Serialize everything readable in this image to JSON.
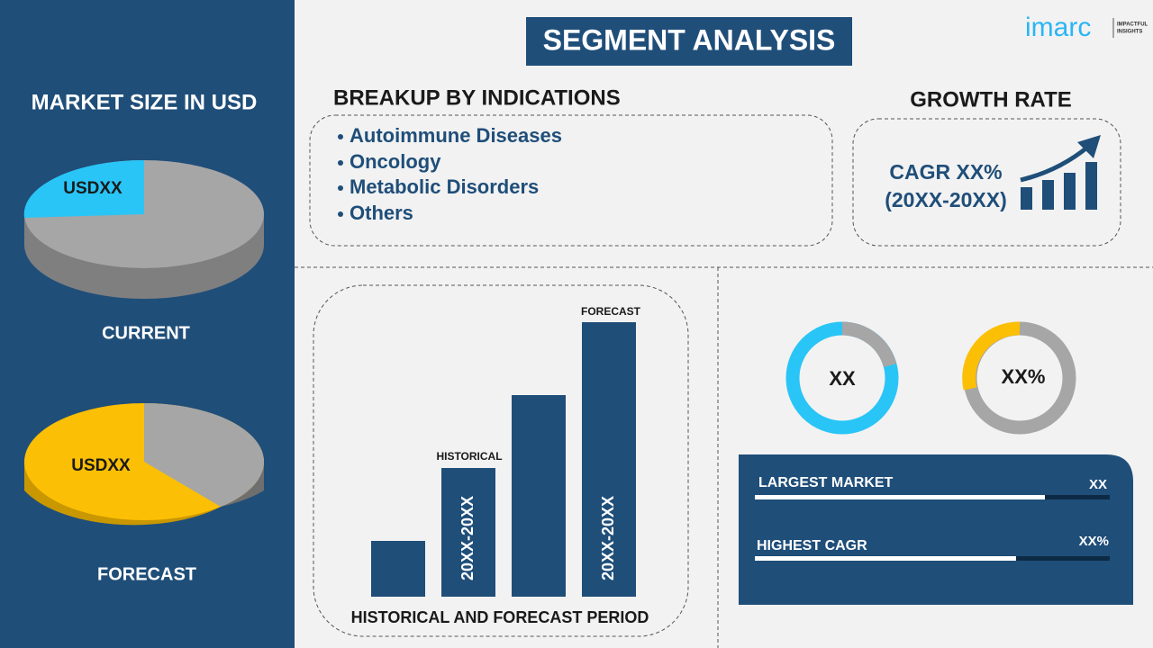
{
  "header": {
    "title": "SEGMENT ANALYSIS",
    "logo": "imarc",
    "tagline": [
      "IMPACTFUL",
      "INSIGHTS"
    ]
  },
  "market_size": {
    "title": "MARKET SIZE IN USD",
    "current": {
      "value": "USDXX",
      "label": "CURRENT"
    },
    "forecast": {
      "value": "USDXX",
      "label": "FORECAST"
    }
  },
  "breakup": {
    "title": "BREAKUP BY INDICATIONS",
    "items": [
      "Autoimmune Diseases",
      "Oncology",
      "Metabolic Disorders",
      "Others"
    ]
  },
  "growth_rate": {
    "title": "GROWTH RATE",
    "cagr": "CAGR XX%",
    "period": "(20XX-20XX)"
  },
  "periods": {
    "historical_label": "HISTORICAL",
    "forecast_label": "FORECAST",
    "historical_period": "20XX-20XX",
    "forecast_period": "20XX-20XX",
    "caption": "HISTORICAL AND FORECAST PERIOD"
  },
  "donuts": [
    "XX",
    "XX%"
  ],
  "stats": [
    {
      "label": "LARGEST MARKET",
      "value": "XX"
    },
    {
      "label": "HIGHEST CAGR",
      "value": "XX%"
    }
  ]
}
